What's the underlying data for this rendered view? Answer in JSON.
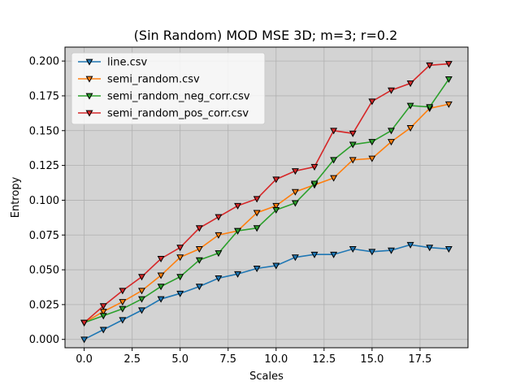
{
  "chart_data": {
    "type": "line",
    "title": "(Sin Random) MOD MSE 3D; m=3; r=0.2",
    "xlabel": "Scales",
    "ylabel": "Entropy",
    "xlim": [
      -1,
      20
    ],
    "ylim": [
      -0.006,
      0.21
    ],
    "xticks": [
      0,
      2.5,
      5,
      7.5,
      10,
      12.5,
      15,
      17.5
    ],
    "xtick_labels": [
      "0.0",
      "2.5",
      "5.0",
      "7.5",
      "10.0",
      "12.5",
      "15.0",
      "17.5"
    ],
    "yticks": [
      0,
      0.025,
      0.05,
      0.075,
      0.1,
      0.125,
      0.15,
      0.175,
      0.2
    ],
    "ytick_labels": [
      "0.000",
      "0.025",
      "0.050",
      "0.075",
      "0.100",
      "0.125",
      "0.150",
      "0.175",
      "0.200"
    ],
    "grid": true,
    "background": "#d3d3d3",
    "legend_position": "top-left",
    "x": [
      0,
      1,
      2,
      3,
      4,
      5,
      6,
      7,
      8,
      9,
      10,
      11,
      12,
      13,
      14,
      15,
      16,
      17,
      18,
      19
    ],
    "series": [
      {
        "name": "line.csv",
        "color": "#1f77b4",
        "values": [
          0.0,
          0.007,
          0.014,
          0.021,
          0.029,
          0.033,
          0.038,
          0.044,
          0.047,
          0.051,
          0.053,
          0.059,
          0.061,
          0.061,
          0.065,
          0.063,
          0.064,
          0.068,
          0.066,
          0.065
        ]
      },
      {
        "name": "semi_random.csv",
        "color": "#ff7f0e",
        "values": [
          0.012,
          0.02,
          0.027,
          0.035,
          0.046,
          0.059,
          0.065,
          0.075,
          0.078,
          0.091,
          0.096,
          0.106,
          0.111,
          0.116,
          0.129,
          0.13,
          0.142,
          0.152,
          0.166,
          0.169
        ]
      },
      {
        "name": "semi_random_neg_corr.csv",
        "color": "#2ca02c",
        "values": [
          0.012,
          0.017,
          0.022,
          0.029,
          0.038,
          0.045,
          0.057,
          0.062,
          0.078,
          0.08,
          0.093,
          0.098,
          0.112,
          0.129,
          0.14,
          0.142,
          0.15,
          0.168,
          0.167,
          0.187
        ]
      },
      {
        "name": "semi_random_pos_corr.csv",
        "color": "#d62728",
        "values": [
          0.012,
          0.024,
          0.035,
          0.045,
          0.058,
          0.066,
          0.08,
          0.088,
          0.096,
          0.101,
          0.115,
          0.121,
          0.124,
          0.15,
          0.148,
          0.171,
          0.179,
          0.184,
          0.197,
          0.198
        ]
      }
    ]
  }
}
